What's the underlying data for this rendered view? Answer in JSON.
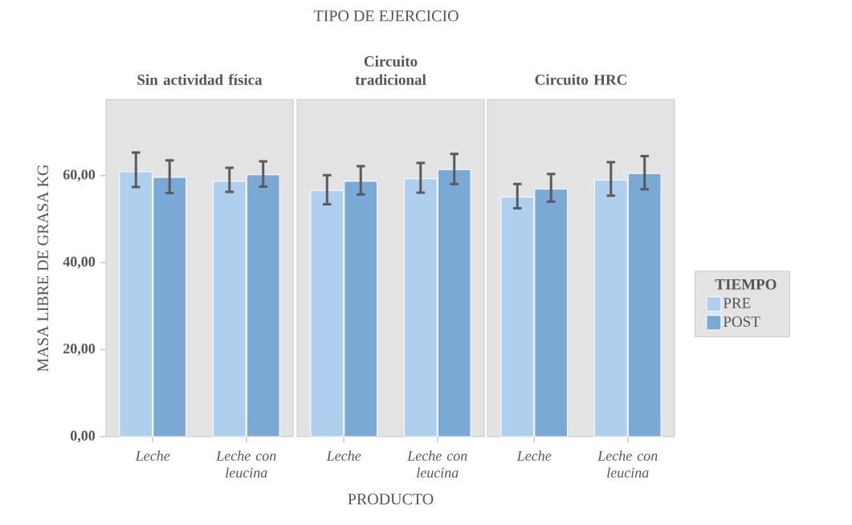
{
  "chart_data": [
    {
      "type": "bar",
      "title": "Sin actividad física",
      "ylabel": "MASA LIBRE DE GRASA KG",
      "annotations": [
        "TIPO DE EJERCICIO"
      ],
      "categories": [
        "Leche",
        "Leche con leucina"
      ],
      "ylim": [
        0,
        77.5
      ],
      "yticks": [
        {
          "value": 0,
          "label": "0,00"
        },
        {
          "value": 20,
          "label": "20,00"
        },
        {
          "value": 40,
          "label": "40,00"
        },
        {
          "value": 60,
          "label": "60,00"
        }
      ],
      "series": [
        {
          "color": "#aed0ee",
          "values": [
            60.9,
            58.7
          ],
          "errors": [
            [
              57.4,
              65.3
            ],
            [
              56.3,
              61.8
            ]
          ]
        },
        {
          "color": "#7aa9d6",
          "values": [
            59.6,
            60.2
          ],
          "errors": [
            [
              56.0,
              63.5
            ],
            [
              57.5,
              63.3
            ]
          ]
        }
      ]
    },
    {
      "type": "bar",
      "title": "Circuito tradicional",
      "xlabel": "PRODUCTO",
      "tick_labels": "x",
      "categories": [
        "Leche",
        "Leche con leucina"
      ],
      "ylim": [
        0,
        77.5
      ],
      "series": [
        {
          "color": "#aed0ee",
          "values": [
            56.6,
            59.3
          ],
          "errors": [
            [
              53.4,
              60.1
            ],
            [
              56.1,
              62.9
            ]
          ]
        },
        {
          "color": "#7aa9d6",
          "values": [
            58.7,
            61.4
          ],
          "errors": [
            [
              55.7,
              62.2
            ],
            [
              58.1,
              65.0
            ]
          ]
        }
      ]
    },
    {
      "type": "bar",
      "title": "Circuito HRC",
      "tick_labels": "x",
      "legend": "right",
      "legend_title": "TIEMPO",
      "categories": [
        "Leche",
        "Leche con leucina"
      ],
      "ylim": [
        0,
        77.5
      ],
      "series": [
        {
          "name": "PRE",
          "color": "#aed0ee",
          "values": [
            55.1,
            59.0
          ],
          "errors": [
            [
              52.5,
              58.1
            ],
            [
              55.4,
              63.1
            ]
          ]
        },
        {
          "name": "POST",
          "color": "#7aa9d6",
          "values": [
            56.9,
            60.5
          ],
          "errors": [
            [
              54.0,
              60.4
            ],
            [
              56.9,
              64.5
            ]
          ]
        }
      ]
    }
  ]
}
